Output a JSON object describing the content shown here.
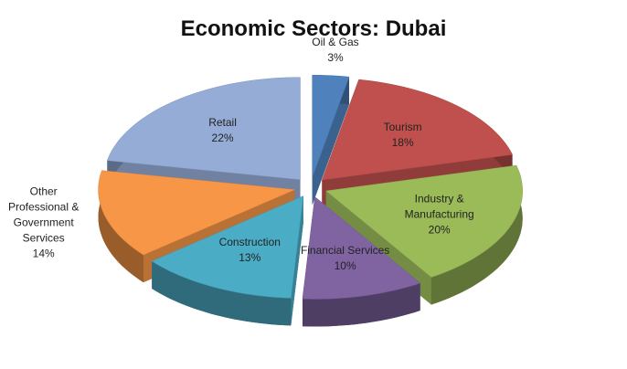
{
  "chart_data": {
    "type": "pie",
    "title": "Economic Sectors: Dubai",
    "categories": [
      "Oil & Gas",
      "Tourism",
      "Industry & Manufacturing",
      "Financial Services",
      "Construction",
      "Other Professional & Government Services",
      "Retail"
    ],
    "values": [
      3,
      18,
      20,
      10,
      13,
      14,
      22
    ],
    "value_labels": [
      "3%",
      "18%",
      "20%",
      "10%",
      "13%",
      "14%",
      "22%"
    ],
    "colors": [
      "#4f81bd",
      "#c0504d",
      "#9bbb59",
      "#8064a2",
      "#4bacc6",
      "#f79646",
      "#95acd6"
    ]
  }
}
